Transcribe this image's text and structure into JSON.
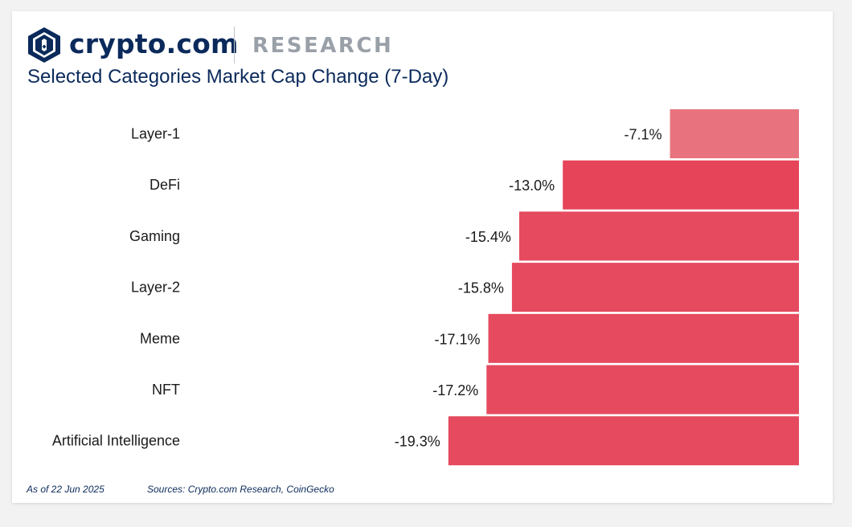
{
  "brand": {
    "logo_text": "crypto.com",
    "research_label": "RESEARCH",
    "colors": {
      "navy": "#0b2a5b",
      "gray": "#9aa0a8"
    }
  },
  "footer": {
    "date_note": "As of 22 Jun 2025",
    "sources": "Sources: Crypto.com Research, CoinGecko"
  },
  "chart_data": {
    "type": "bar",
    "orientation": "horizontal",
    "title": "Selected Categories Market Cap Change (7-Day)",
    "categories": [
      "Layer-1",
      "DeFi",
      "Gaming",
      "Layer-2",
      "Meme",
      "NFT",
      "Artificial Intelligence"
    ],
    "values": [
      -7.1,
      -13.0,
      -15.4,
      -15.8,
      -17.1,
      -17.2,
      -19.3
    ],
    "value_labels": [
      "-7.1%",
      "-13.0%",
      "-15.4%",
      "-15.8%",
      "-17.1%",
      "-17.2%",
      "-19.3%"
    ],
    "unit": "%",
    "xlim": [
      -24.9,
      0
    ],
    "grid": false,
    "legend": "none",
    "colors": {
      "highlight": "#e8737f",
      "default": "#e54a5f",
      "defi": "#e54459"
    }
  }
}
